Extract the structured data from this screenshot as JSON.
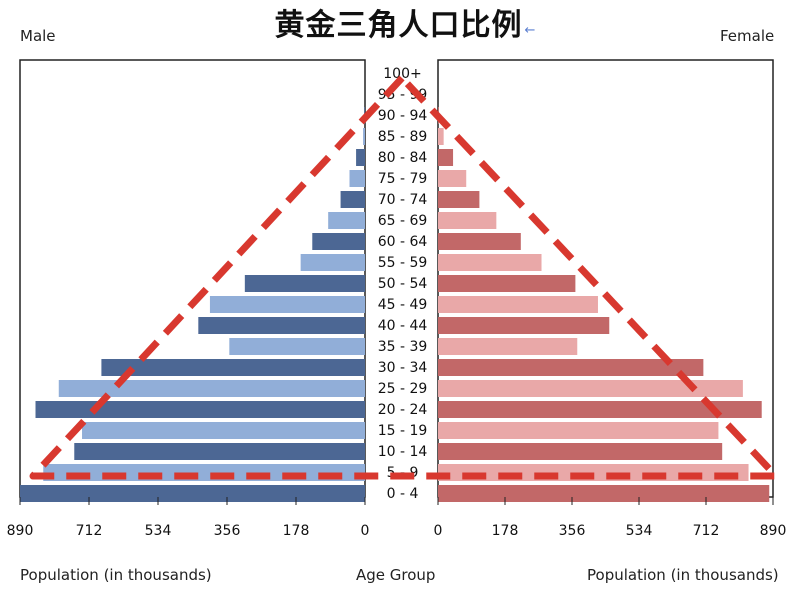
{
  "title": "黄金三角人口比例",
  "chart_data": {
    "type": "bar",
    "subtype": "population-pyramid",
    "title": "黄金三角人口比例",
    "left_label": "Male",
    "right_label": "Female",
    "xlabel_left": "Population (in thousands)",
    "xlabel_center": "Age Group",
    "xlabel_right": "Population (in thousands)",
    "xlim": [
      0,
      890
    ],
    "ticks": [
      890,
      712,
      534,
      356,
      178,
      0
    ],
    "categories": [
      "100+",
      "95 - 99",
      "90 - 94",
      "85 - 89",
      "80 - 84",
      "75 - 79",
      "70 - 74",
      "65 - 69",
      "60 - 64",
      "55 - 59",
      "50 - 54",
      "45 - 49",
      "40 - 44",
      "35 - 39",
      "30 - 34",
      "25 - 29",
      "20 - 24",
      "15 - 19",
      "10 - 14",
      "5 - 9",
      "0 - 4"
    ],
    "series": [
      {
        "name": "Male",
        "values": [
          0,
          0,
          2,
          5,
          23,
          40,
          63,
          95,
          136,
          166,
          310,
          400,
          430,
          350,
          680,
          790,
          850,
          730,
          750,
          830,
          890
        ]
      },
      {
        "name": "Female",
        "values": [
          0,
          0,
          2,
          15,
          40,
          75,
          110,
          155,
          220,
          275,
          365,
          425,
          455,
          370,
          705,
          810,
          860,
          745,
          755,
          825,
          880
        ]
      }
    ],
    "colors": {
      "male_dark": "#4c6794",
      "male_light": "#91aed8",
      "female_dark": "#c26868",
      "female_light": "#e9a8a8",
      "triangle": "#d8382f"
    },
    "annotation": "dashed-triangle"
  }
}
